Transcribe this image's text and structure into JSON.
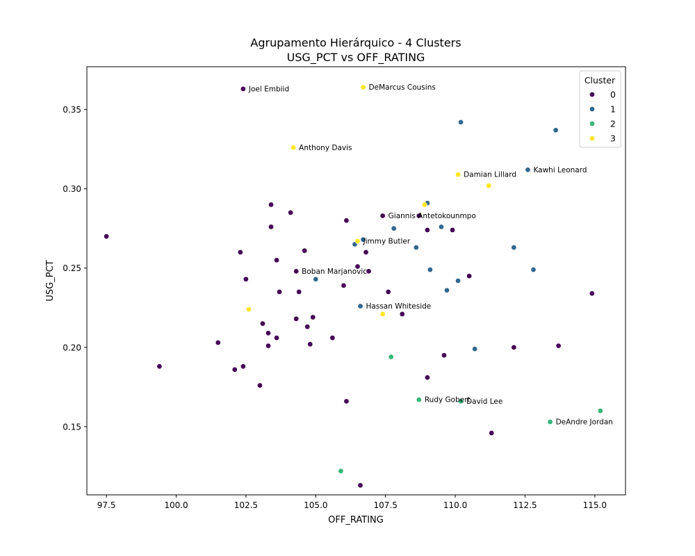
{
  "chart_data": {
    "type": "scatter",
    "title_lines": [
      "Agrupamento Hierárquico - 4 Clusters",
      "USG_PCT vs OFF_RATING"
    ],
    "xlabel": "OFF_RATING",
    "ylabel": "USG_PCT",
    "xlim": [
      96.8,
      116.1
    ],
    "ylim": [
      0.107,
      0.377
    ],
    "x_ticks": [
      97.5,
      100.0,
      102.5,
      105.0,
      107.5,
      110.0,
      112.5,
      115.0
    ],
    "x_tick_labels": [
      "97.5",
      "100.0",
      "102.5",
      "105.0",
      "107.5",
      "110.0",
      "112.5",
      "115.0"
    ],
    "y_ticks": [
      0.15,
      0.2,
      0.25,
      0.3,
      0.35
    ],
    "y_tick_labels": [
      "0.15",
      "0.20",
      "0.25",
      "0.30",
      "0.35"
    ],
    "grid": false,
    "legend": {
      "title": "Cluster",
      "placement": "top-right",
      "entries": [
        {
          "label": "0",
          "color": "#440154"
        },
        {
          "label": "1",
          "color": "#31688e"
        },
        {
          "label": "2",
          "color": "#35b779"
        },
        {
          "label": "3",
          "color": "#fde725"
        }
      ]
    },
    "series": [
      {
        "name": "0",
        "color": "#440154",
        "points": [
          [
            97.5,
            0.27
          ],
          [
            99.4,
            0.188
          ],
          [
            101.5,
            0.203
          ],
          [
            102.1,
            0.186
          ],
          [
            102.3,
            0.26
          ],
          [
            102.4,
            0.188
          ],
          [
            102.4,
            0.363
          ],
          [
            102.5,
            0.243
          ],
          [
            103.0,
            0.176
          ],
          [
            103.1,
            0.215
          ],
          [
            103.3,
            0.209
          ],
          [
            103.3,
            0.201
          ],
          [
            103.4,
            0.29
          ],
          [
            103.4,
            0.276
          ],
          [
            103.6,
            0.255
          ],
          [
            103.6,
            0.206
          ],
          [
            103.7,
            0.235
          ],
          [
            104.1,
            0.285
          ],
          [
            104.3,
            0.248
          ],
          [
            104.3,
            0.218
          ],
          [
            104.4,
            0.235
          ],
          [
            104.6,
            0.261
          ],
          [
            104.7,
            0.213
          ],
          [
            104.8,
            0.202
          ],
          [
            104.9,
            0.219
          ],
          [
            105.6,
            0.206
          ],
          [
            106.0,
            0.239
          ],
          [
            106.1,
            0.28
          ],
          [
            106.1,
            0.166
          ],
          [
            106.5,
            0.251
          ],
          [
            106.6,
            0.113
          ],
          [
            106.8,
            0.26
          ],
          [
            106.9,
            0.248
          ],
          [
            107.4,
            0.283
          ],
          [
            107.6,
            0.235
          ],
          [
            108.1,
            0.221
          ],
          [
            108.7,
            0.283
          ],
          [
            109.0,
            0.274
          ],
          [
            109.0,
            0.181
          ],
          [
            109.6,
            0.195
          ],
          [
            109.9,
            0.274
          ],
          [
            110.5,
            0.245
          ],
          [
            111.3,
            0.146
          ],
          [
            112.1,
            0.2
          ],
          [
            113.7,
            0.201
          ],
          [
            114.9,
            0.234
          ]
        ]
      },
      {
        "name": "1",
        "color": "#31688e",
        "points": [
          [
            105.0,
            0.243
          ],
          [
            106.4,
            0.265
          ],
          [
            106.6,
            0.226
          ],
          [
            106.7,
            0.268
          ],
          [
            107.8,
            0.275
          ],
          [
            108.6,
            0.263
          ],
          [
            109.0,
            0.291
          ],
          [
            109.1,
            0.249
          ],
          [
            109.5,
            0.276
          ],
          [
            109.7,
            0.236
          ],
          [
            110.1,
            0.242
          ],
          [
            110.2,
            0.342
          ],
          [
            110.7,
            0.199
          ],
          [
            112.1,
            0.263
          ],
          [
            112.6,
            0.312
          ],
          [
            112.8,
            0.249
          ],
          [
            113.6,
            0.337
          ]
        ]
      },
      {
        "name": "2",
        "color": "#35b779",
        "points": [
          [
            105.9,
            0.122
          ],
          [
            107.7,
            0.194
          ],
          [
            108.7,
            0.167
          ],
          [
            110.2,
            0.166
          ],
          [
            113.4,
            0.153
          ],
          [
            115.2,
            0.16
          ]
        ]
      },
      {
        "name": "3",
        "color": "#fde725",
        "points": [
          [
            102.6,
            0.224
          ],
          [
            104.2,
            0.326
          ],
          [
            106.5,
            0.267
          ],
          [
            106.7,
            0.364
          ],
          [
            107.4,
            0.221
          ],
          [
            108.9,
            0.29
          ],
          [
            110.1,
            0.309
          ],
          [
            111.2,
            0.302
          ]
        ]
      }
    ],
    "annotations": [
      {
        "text": "Joel Embiid",
        "x": 102.4,
        "y": 0.363
      },
      {
        "text": "DeMarcus Cousins",
        "x": 106.7,
        "y": 0.364
      },
      {
        "text": "Anthony Davis",
        "x": 104.2,
        "y": 0.326
      },
      {
        "text": "Damian Lillard",
        "x": 110.1,
        "y": 0.309
      },
      {
        "text": "Kawhi Leonard",
        "x": 112.6,
        "y": 0.312
      },
      {
        "text": "Giannis Antetokounmpo",
        "x": 107.4,
        "y": 0.283
      },
      {
        "text": "Jimmy Butler",
        "x": 106.5,
        "y": 0.267
      },
      {
        "text": "Boban Marjanovic",
        "x": 104.3,
        "y": 0.248
      },
      {
        "text": "Hassan Whiteside",
        "x": 106.6,
        "y": 0.226
      },
      {
        "text": "Rudy Gobert",
        "x": 108.7,
        "y": 0.167
      },
      {
        "text": "David Lee",
        "x": 110.2,
        "y": 0.166
      },
      {
        "text": "DeAndre Jordan",
        "x": 113.4,
        "y": 0.153
      }
    ]
  }
}
